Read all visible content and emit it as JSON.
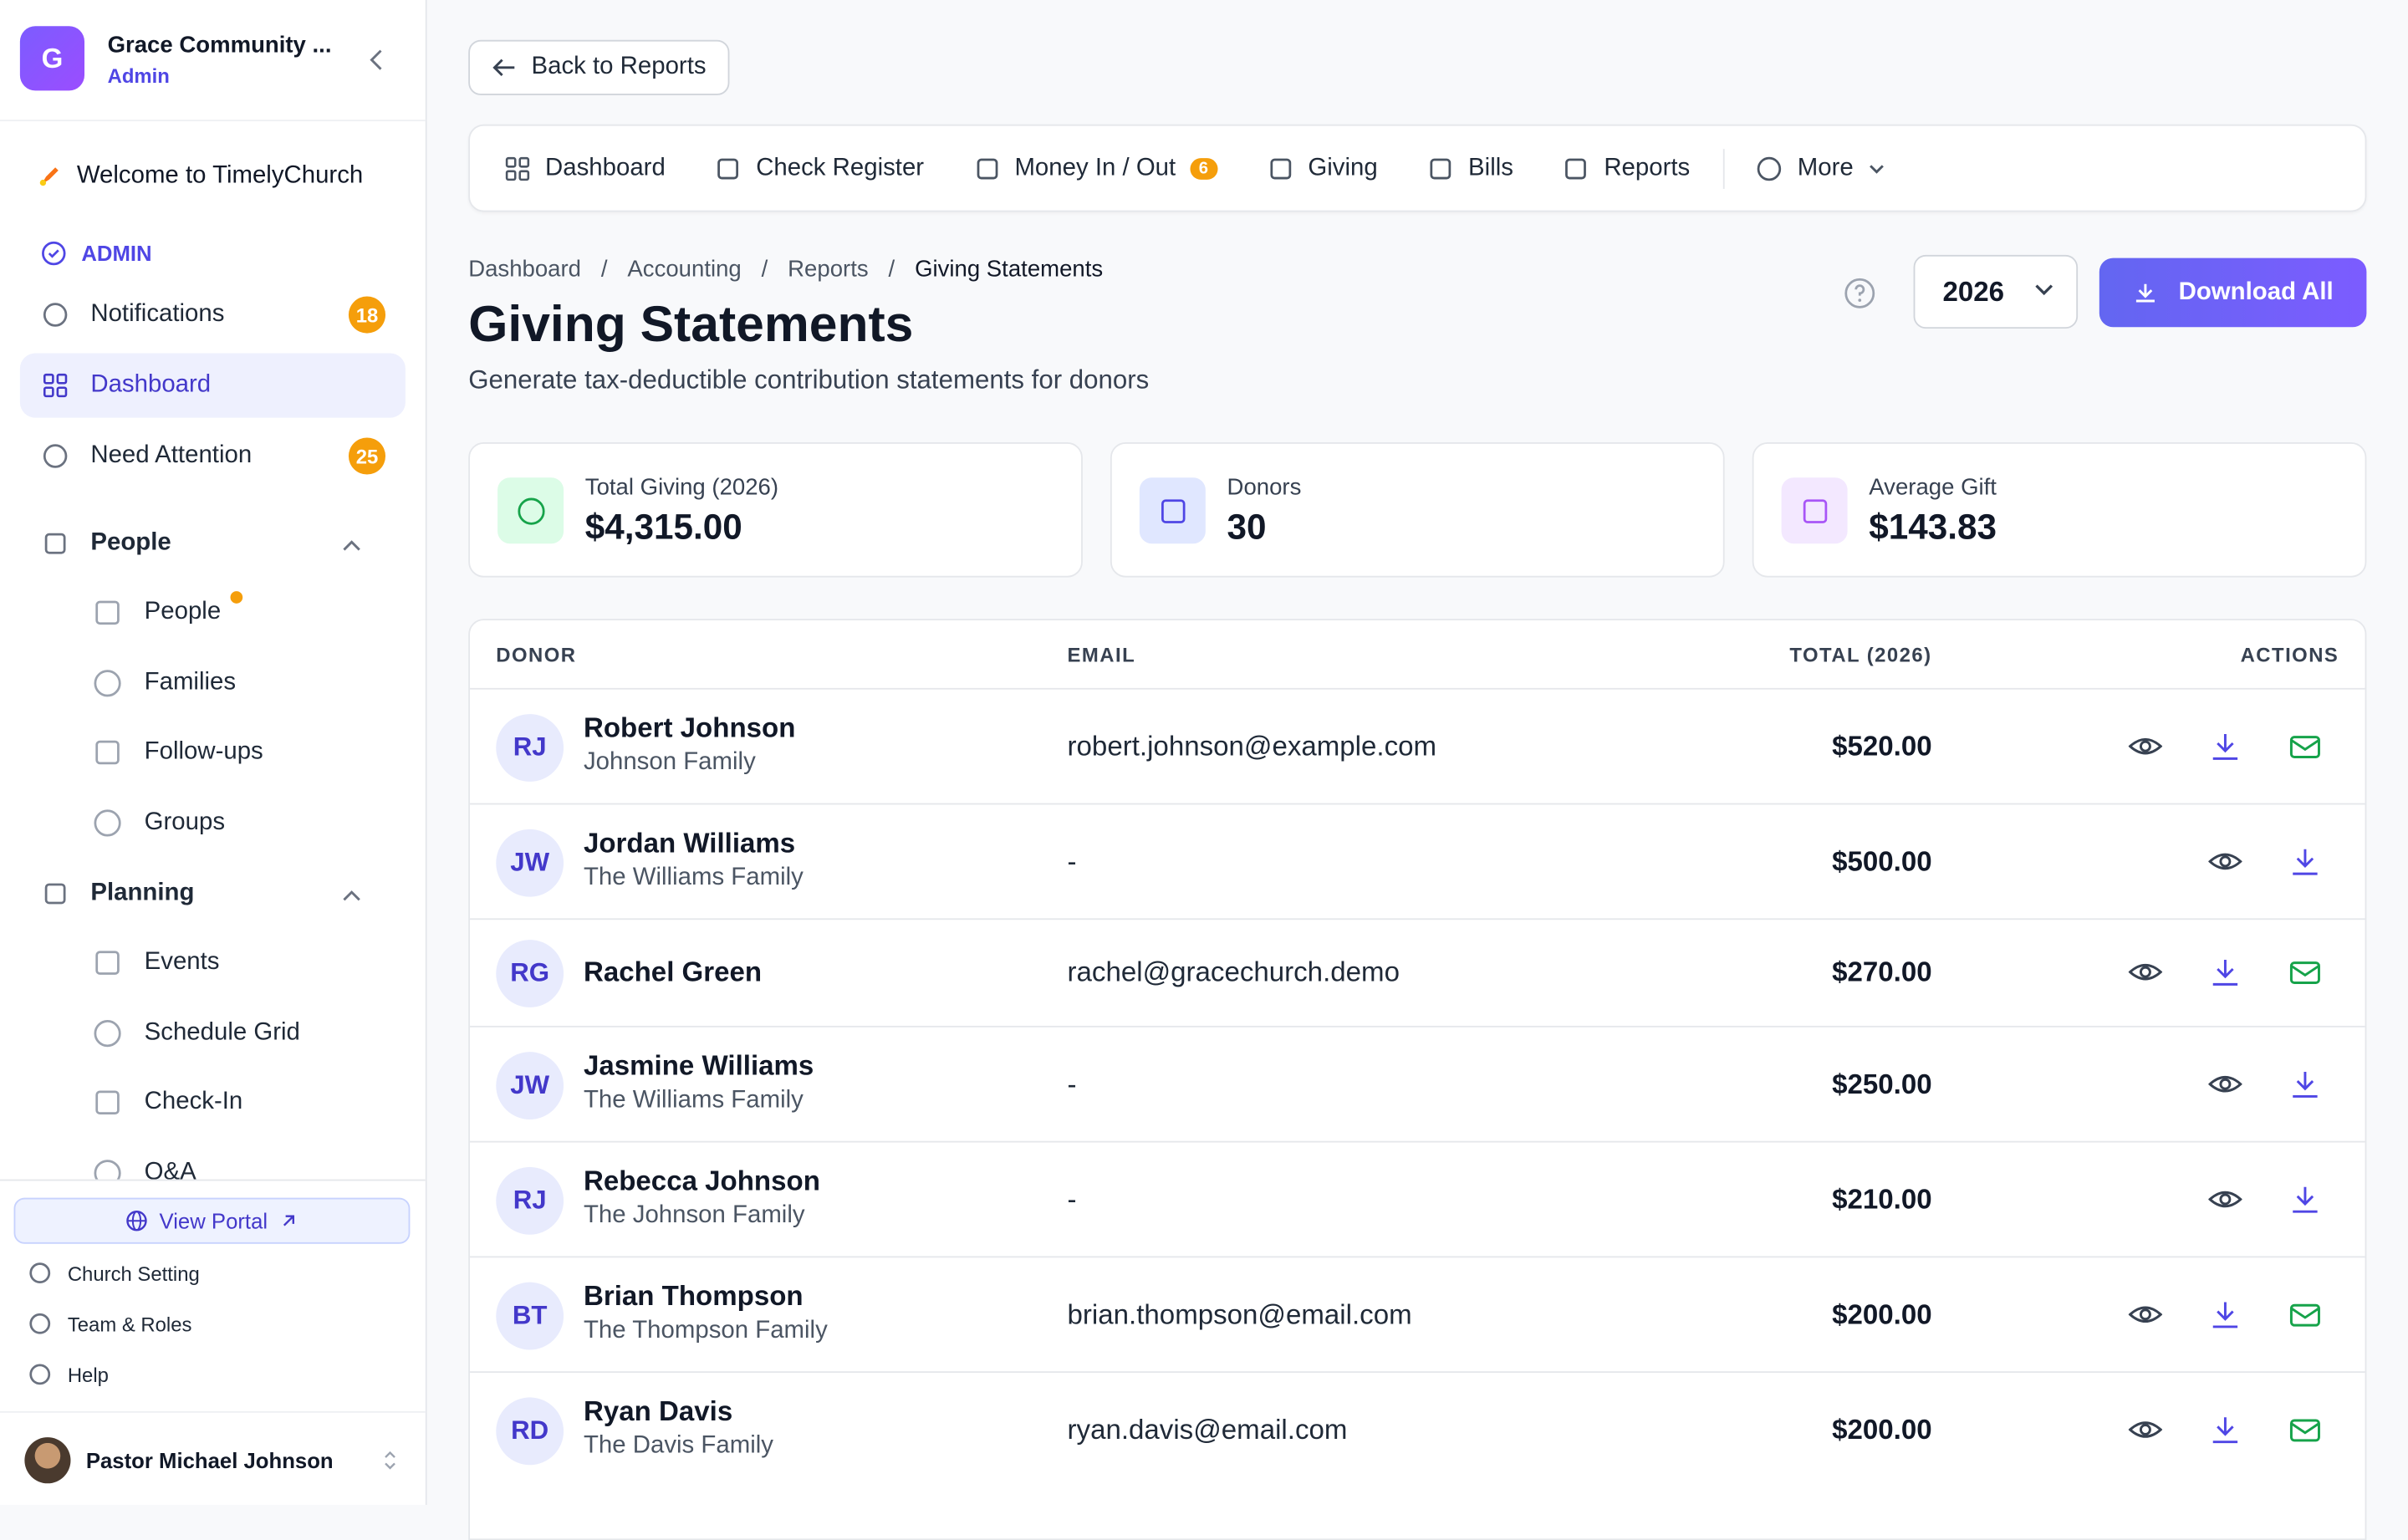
{
  "sidebar": {
    "org": {
      "avatar": "G",
      "name": "Grace Community ...",
      "role": "Admin"
    },
    "welcome": "Welcome to TimelyChurch",
    "section": "ADMIN",
    "items": [
      {
        "label": "Notifications",
        "badge": "18"
      },
      {
        "label": "Dashboard"
      },
      {
        "label": "Need Attention",
        "badge": "25"
      }
    ],
    "groups": [
      {
        "label": "People",
        "items": [
          "People",
          "Families",
          "Follow-ups",
          "Groups"
        ]
      },
      {
        "label": "Planning",
        "items": [
          "Events",
          "Schedule Grid",
          "Check-In",
          "Q&A"
        ]
      }
    ],
    "portal": "View Portal",
    "footer_links": [
      "Church Setting",
      "Team & Roles",
      "Help"
    ],
    "user": "Pastor Michael Johnson"
  },
  "back": "Back to Reports",
  "tabs": [
    {
      "label": "Dashboard"
    },
    {
      "label": "Check Register"
    },
    {
      "label": "Money In / Out",
      "badge": "6"
    },
    {
      "label": "Giving"
    },
    {
      "label": "Bills"
    },
    {
      "label": "Reports"
    },
    {
      "label": "More"
    }
  ],
  "breadcrumb": [
    "Dashboard",
    "Accounting",
    "Reports",
    "Giving Statements"
  ],
  "breadcrumb_separator": "/",
  "title": "Giving Statements",
  "subtitle": "Generate tax-deductible contribution statements for donors",
  "year": "2026",
  "download_all": "Download All",
  "stats": [
    {
      "label": "Total Giving (2026)",
      "value": "$4,315.00"
    },
    {
      "label": "Donors",
      "value": "30"
    },
    {
      "label": "Average Gift",
      "value": "$143.83"
    }
  ],
  "table": {
    "headers": [
      "DONOR",
      "EMAIL",
      "TOTAL (2026)",
      "ACTIONS"
    ],
    "rows": [
      {
        "initials": "RJ",
        "name": "Robert Johnson",
        "family": "Johnson Family",
        "email": "robert.johnson@example.com",
        "total": "$520.00",
        "can_email": true
      },
      {
        "initials": "JW",
        "name": "Jordan Williams",
        "family": "The Williams Family",
        "email": "-",
        "total": "$500.00",
        "can_email": false
      },
      {
        "initials": "RG",
        "name": "Rachel Green",
        "email": "rachel@gracechurch.demo",
        "total": "$270.00",
        "can_email": true
      },
      {
        "initials": "JW",
        "name": "Jasmine Williams",
        "family": "The Williams Family",
        "email": "-",
        "total": "$250.00",
        "can_email": false
      },
      {
        "initials": "RJ",
        "name": "Rebecca Johnson",
        "family": "The Johnson Family",
        "email": "-",
        "total": "$210.00",
        "can_email": false
      },
      {
        "initials": "BT",
        "name": "Brian Thompson",
        "family": "The Thompson Family",
        "email": "brian.thompson@email.com",
        "total": "$200.00",
        "can_email": true
      },
      {
        "initials": "RD",
        "name": "Ryan Davis",
        "family": "The Davis Family",
        "email": "ryan.davis@email.com",
        "total": "$200.00",
        "can_email": true
      }
    ]
  }
}
